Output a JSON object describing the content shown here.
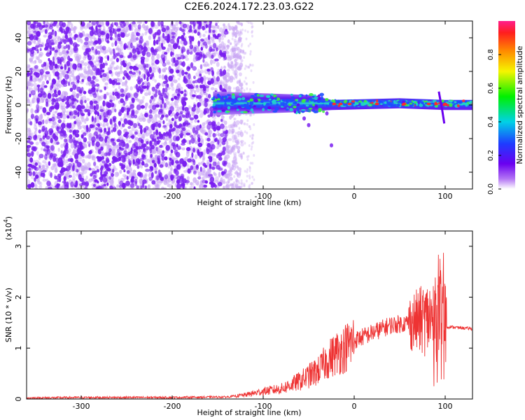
{
  "figure_title": "C2E6.2024.172.23.03.G22",
  "colors": {
    "snr_line": "#ee3333",
    "scatter_dot": "#7a1ff0",
    "scatter_faint": "#c9a6f4",
    "band_core": "#1ec8b4",
    "band_peak": "#ff2a2a"
  },
  "chart_data": [
    {
      "type": "heatmap",
      "title": "",
      "xlabel": "Height of straight line (km)",
      "ylabel": "Frequency (Hz)",
      "xlim": [
        -360,
        130
      ],
      "ylim": [
        -50,
        50
      ],
      "x_ticks": [
        {
          "value": -300,
          "label": "-300"
        },
        {
          "value": -200,
          "label": "-200"
        },
        {
          "value": -100,
          "label": "-100"
        },
        {
          "value": 0,
          "label": "0"
        },
        {
          "value": 100,
          "label": "100"
        }
      ],
      "y_ticks": [
        {
          "value": 40,
          "label": "40"
        },
        {
          "value": 20,
          "label": "20"
        },
        {
          "value": 0,
          "label": "0"
        },
        {
          "value": -20,
          "label": "-20"
        },
        {
          "value": -40,
          "label": "-40"
        }
      ],
      "colorbar": {
        "label": "Normalized spectral amplitude",
        "range": [
          0,
          1
        ],
        "ticks": [
          {
            "value": 0.0,
            "label": "0.0"
          },
          {
            "value": 0.2,
            "label": "0.2"
          },
          {
            "value": 0.4,
            "label": "0.4"
          },
          {
            "value": 0.6,
            "label": "0.6"
          },
          {
            "value": 0.8,
            "label": "0.8"
          }
        ]
      },
      "noise_region_x": [
        -360,
        -135
      ],
      "signal_band": [
        {
          "x": -155,
          "center": 1,
          "halfwidth": 7
        },
        {
          "x": -100,
          "center": 1,
          "halfwidth": 6
        },
        {
          "x": -50,
          "center": 1,
          "halfwidth": 5
        },
        {
          "x": -25,
          "center": 0,
          "halfwidth": 3
        },
        {
          "x": 50,
          "center": 1,
          "halfwidth": 3
        },
        {
          "x": 100,
          "center": 0,
          "halfwidth": 3
        },
        {
          "x": 130,
          "center": 0,
          "halfwidth": 3
        }
      ]
    },
    {
      "type": "line",
      "title": "",
      "xlabel": "Height of straight line (km)",
      "ylabel": "SNR (10 * v/v)",
      "y_multiplier": "(x10",
      "y_multiplier_exp": "4",
      "y_multiplier_close": ")",
      "xlim": [
        -360,
        130
      ],
      "ylim": [
        0,
        3.3
      ],
      "x_ticks": [
        {
          "value": -300,
          "label": "-300"
        },
        {
          "value": -200,
          "label": "-200"
        },
        {
          "value": -100,
          "label": "-100"
        },
        {
          "value": 0,
          "label": "0"
        },
        {
          "value": 100,
          "label": "100"
        }
      ],
      "y_ticks": [
        {
          "value": 0,
          "label": "0"
        },
        {
          "value": 1,
          "label": "1"
        },
        {
          "value": 2,
          "label": "2"
        },
        {
          "value": 3,
          "label": "3"
        }
      ],
      "series": [
        {
          "x": [
            -360,
            -300,
            -200,
            -140,
            -120,
            -100,
            -80,
            -60,
            -40,
            -30,
            -20,
            -10,
            0,
            20,
            40,
            60,
            75,
            85,
            90,
            95,
            98,
            100,
            105,
            115,
            130
          ],
          "y": [
            0.02,
            0.03,
            0.03,
            0.04,
            0.08,
            0.15,
            0.2,
            0.35,
            0.55,
            0.75,
            0.9,
            1.0,
            1.15,
            1.3,
            1.45,
            1.5,
            1.55,
            1.6,
            1.55,
            1.7,
            2.0,
            1.4,
            1.42,
            1.4,
            1.38
          ]
        }
      ]
    }
  ]
}
